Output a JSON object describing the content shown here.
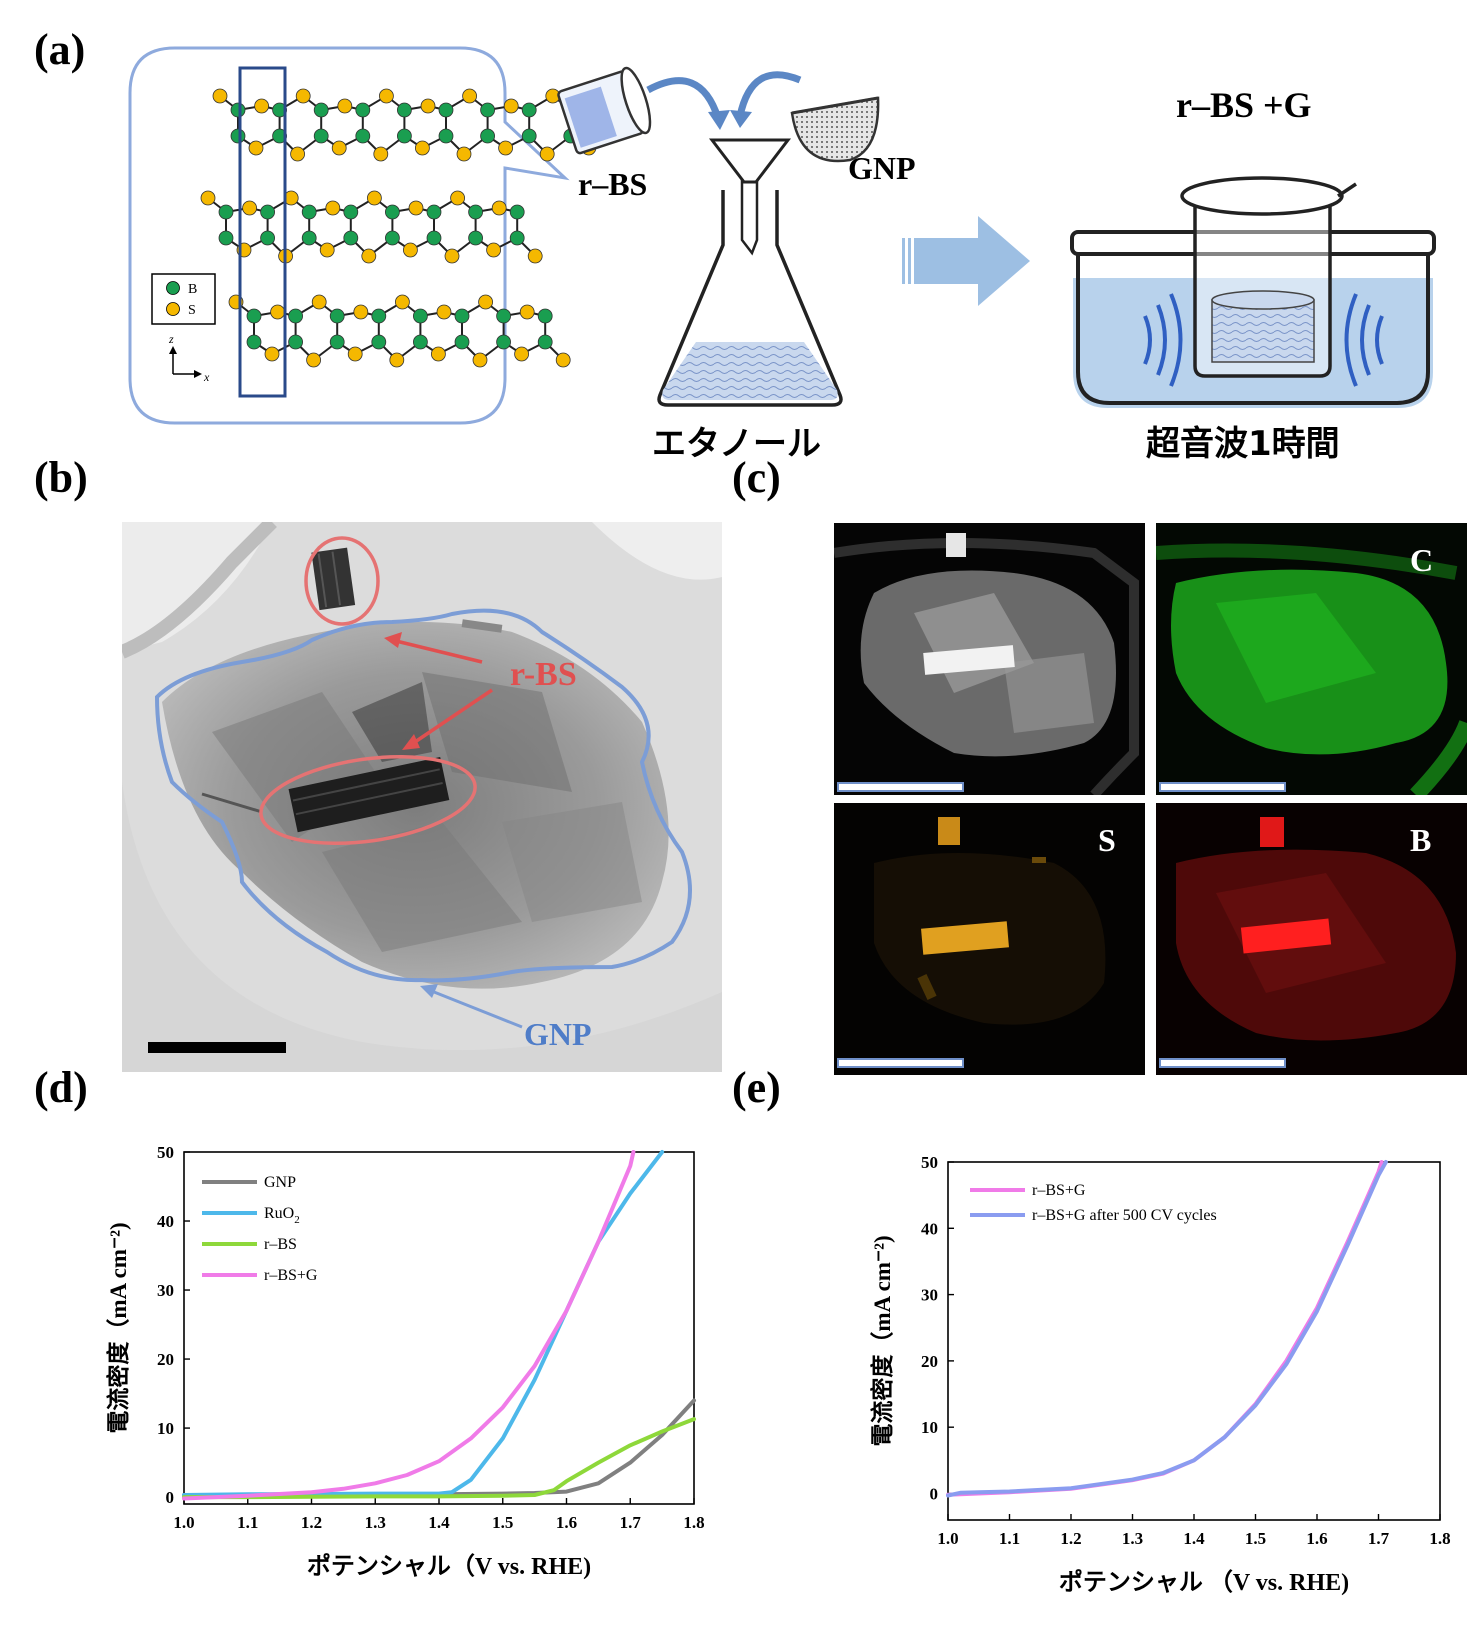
{
  "panels": {
    "a": "(a)",
    "b": "(b)",
    "c": "(c)",
    "d": "(d)",
    "e": "(e)"
  },
  "panel_a": {
    "legend_b": "B",
    "legend_s": "S",
    "axis_z": "z",
    "axis_x": "x",
    "rbs_label": "r–BS",
    "gnp_label": "GNP",
    "ethanol_label": "エタノール",
    "product_label": "r–BS +G",
    "sonication_label": "超音波1時間",
    "colors": {
      "boron": "#1a9e50",
      "sulfur": "#f5b800",
      "bubble": "#7f9fd3",
      "arrow": "#9dbfe3"
    }
  },
  "panel_b": {
    "rbs_label": "r-BS",
    "gnp_label": "GNP",
    "colors": {
      "rbs": "#e05050",
      "gnp": "#7c9dd6"
    }
  },
  "panel_c": {
    "maps": [
      "",
      "C",
      "S",
      "B"
    ],
    "colors": {
      "C": "#1ca81c",
      "S": "#e0a020",
      "B": "#e01818"
    }
  },
  "chart_data": [
    {
      "panel": "d",
      "type": "line",
      "xlabel": "ポテンシャル（V vs. RHE)",
      "ylabel": "電流密度（mA cm⁻²)",
      "xlim": [
        1.0,
        1.8
      ],
      "ylim": [
        -1,
        50
      ],
      "xticks": [
        "1.0",
        "1.1",
        "1.2",
        "1.3",
        "1.4",
        "1.5",
        "1.6",
        "1.7",
        "1.8"
      ],
      "yticks": [
        "0",
        "10",
        "20",
        "30",
        "40",
        "50"
      ],
      "legend_position": "top-left",
      "series": [
        {
          "name": "GNP",
          "color": "#808080",
          "x": [
            1.0,
            1.1,
            1.2,
            1.3,
            1.4,
            1.5,
            1.55,
            1.6,
            1.65,
            1.7,
            1.75,
            1.8
          ],
          "y": [
            0.3,
            0.3,
            0.3,
            0.35,
            0.4,
            0.5,
            0.6,
            0.8,
            2.0,
            5.0,
            9.0,
            14.0
          ]
        },
        {
          "name": "RuO2",
          "color": "#4db8ea",
          "x": [
            1.0,
            1.1,
            1.2,
            1.3,
            1.4,
            1.42,
            1.45,
            1.5,
            1.55,
            1.6,
            1.65,
            1.7,
            1.75
          ],
          "y": [
            0.3,
            0.4,
            0.45,
            0.5,
            0.5,
            0.7,
            2.5,
            8.5,
            17.0,
            27.0,
            37.0,
            44.0,
            50.0
          ]
        },
        {
          "name": "r–BS",
          "color": "#8ed83a",
          "x": [
            1.0,
            1.1,
            1.2,
            1.3,
            1.4,
            1.5,
            1.55,
            1.58,
            1.6,
            1.65,
            1.7,
            1.75,
            1.8
          ],
          "y": [
            0.0,
            0.0,
            0.05,
            0.1,
            0.1,
            0.2,
            0.3,
            1.0,
            2.3,
            5.0,
            7.5,
            9.5,
            11.3
          ]
        },
        {
          "name": "r–BS+G",
          "color": "#f07be8",
          "x": [
            1.0,
            1.1,
            1.2,
            1.25,
            1.3,
            1.35,
            1.4,
            1.45,
            1.5,
            1.55,
            1.6,
            1.65,
            1.7,
            1.705
          ],
          "y": [
            -0.2,
            0.2,
            0.7,
            1.2,
            2.0,
            3.2,
            5.2,
            8.5,
            13.0,
            19.0,
            27.0,
            37.0,
            48.0,
            50.0
          ]
        }
      ],
      "legend_labels": [
        "GNP",
        "RuO",
        "2",
        "r–BS",
        "r–BS+G"
      ]
    },
    {
      "panel": "e",
      "type": "line",
      "xlabel": "ポテンシャル （V vs. RHE)",
      "ylabel": "電流密度（mA cm⁻²)",
      "xlim": [
        1.0,
        1.8
      ],
      "ylim": [
        -4,
        50
      ],
      "xticks": [
        "1.0",
        "1.1",
        "1.2",
        "1.3",
        "1.4",
        "1.5",
        "1.6",
        "1.7",
        "1.8"
      ],
      "yticks": [
        "0",
        "10",
        "20",
        "30",
        "40",
        "50"
      ],
      "legend_position": "top-left",
      "series": [
        {
          "name": "r–BS+G",
          "color": "#f07be8",
          "x": [
            1.0,
            1.05,
            1.1,
            1.2,
            1.3,
            1.35,
            1.4,
            1.45,
            1.5,
            1.55,
            1.6,
            1.65,
            1.7,
            1.705
          ],
          "y": [
            -0.2,
            0.0,
            0.2,
            0.7,
            2.0,
            3.0,
            5.0,
            8.5,
            13.5,
            20.0,
            28.0,
            38.0,
            48.5,
            50.0
          ]
        },
        {
          "name": "r–BS+G after 500 CV cycles",
          "color": "#8a9cf0",
          "x": [
            1.0,
            1.02,
            1.05,
            1.1,
            1.2,
            1.3,
            1.35,
            1.4,
            1.45,
            1.5,
            1.55,
            1.6,
            1.65,
            1.7,
            1.712
          ],
          "y": [
            -0.3,
            0.1,
            0.2,
            0.3,
            0.8,
            2.1,
            3.1,
            5.0,
            8.5,
            13.3,
            19.5,
            27.5,
            37.5,
            48.0,
            50.0
          ]
        }
      ]
    }
  ]
}
